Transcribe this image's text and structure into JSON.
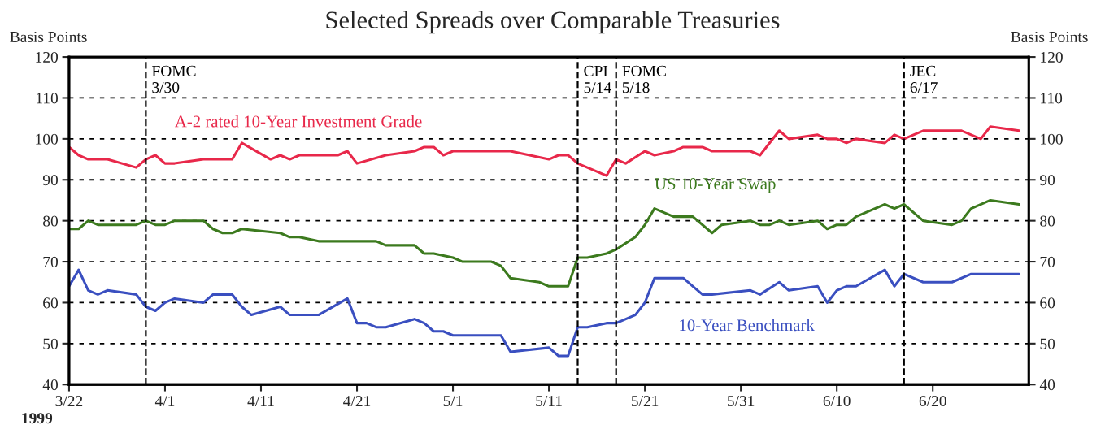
{
  "chart_data": {
    "type": "line",
    "title": "Selected Spreads over Comparable Treasuries",
    "ylabel": "Basis Points",
    "y2label": "Basis Points",
    "annotations": [
      "1999"
    ],
    "series": [
      {
        "name": "A-2 rated 10-Year Investment Grade",
        "color": "#e8284a",
        "x": [
          "1999-03-22",
          "1999-03-23",
          "1999-03-24",
          "1999-03-26",
          "1999-03-29",
          "1999-03-30",
          "1999-03-31",
          "1999-04-01",
          "1999-04-02",
          "1999-04-05",
          "1999-04-08",
          "1999-04-09",
          "1999-04-12",
          "1999-04-13",
          "1999-04-14",
          "1999-04-15",
          "1999-04-19",
          "1999-04-20",
          "1999-04-21",
          "1999-04-24",
          "1999-04-27",
          "1999-04-28",
          "1999-04-29",
          "1999-04-30",
          "1999-05-01",
          "1999-05-07",
          "1999-05-11",
          "1999-05-12",
          "1999-05-13",
          "1999-05-14",
          "1999-05-15",
          "1999-05-17",
          "1999-05-18",
          "1999-05-19",
          "1999-05-21",
          "1999-05-22",
          "1999-05-24",
          "1999-05-25",
          "1999-05-27",
          "1999-05-28",
          "1999-06-01",
          "1999-06-02",
          "1999-06-04",
          "1999-06-05",
          "1999-06-08",
          "1999-06-09",
          "1999-06-10",
          "1999-06-11",
          "1999-06-12",
          "1999-06-15",
          "1999-06-16",
          "1999-06-17",
          "1999-06-19",
          "1999-06-23",
          "1999-06-25",
          "1999-06-26",
          "1999-06-29"
        ],
        "values": [
          98,
          96,
          95,
          95,
          93,
          95,
          96,
          94,
          94,
          95,
          95,
          99,
          95,
          96,
          95,
          96,
          96,
          97,
          94,
          96,
          97,
          98,
          98,
          96,
          97,
          97,
          95,
          96,
          96,
          94,
          93,
          91,
          95,
          94,
          97,
          96,
          97,
          98,
          98,
          97,
          97,
          96,
          102,
          100,
          101,
          100,
          100,
          99,
          100,
          99,
          101,
          100,
          102,
          102,
          100,
          103,
          102
        ]
      },
      {
        "name": "US 10-Year Swap",
        "color": "#3c7a1e",
        "x": [
          "1999-03-22",
          "1999-03-23",
          "1999-03-24",
          "1999-03-25",
          "1999-03-29",
          "1999-03-30",
          "1999-03-31",
          "1999-04-01",
          "1999-04-02",
          "1999-04-05",
          "1999-04-06",
          "1999-04-07",
          "1999-04-08",
          "1999-04-09",
          "1999-04-13",
          "1999-04-14",
          "1999-04-15",
          "1999-04-17",
          "1999-04-23",
          "1999-04-24",
          "1999-04-27",
          "1999-04-28",
          "1999-04-29",
          "1999-05-01",
          "1999-05-02",
          "1999-05-05",
          "1999-05-06",
          "1999-05-07",
          "1999-05-10",
          "1999-05-11",
          "1999-05-13",
          "1999-05-14",
          "1999-05-15",
          "1999-05-17",
          "1999-05-18",
          "1999-05-20",
          "1999-05-21",
          "1999-05-22",
          "1999-05-24",
          "1999-05-26",
          "1999-05-28",
          "1999-05-29",
          "1999-06-01",
          "1999-06-02",
          "1999-06-03",
          "1999-06-04",
          "1999-06-05",
          "1999-06-08",
          "1999-06-09",
          "1999-06-10",
          "1999-06-11",
          "1999-06-12",
          "1999-06-15",
          "1999-06-16",
          "1999-06-17",
          "1999-06-19",
          "1999-06-22",
          "1999-06-23",
          "1999-06-24",
          "1999-06-26",
          "1999-06-29"
        ],
        "values": [
          78,
          78,
          80,
          79,
          79,
          80,
          79,
          79,
          80,
          80,
          78,
          77,
          77,
          78,
          77,
          76,
          76,
          75,
          75,
          74,
          74,
          72,
          72,
          71,
          70,
          70,
          69,
          66,
          65,
          64,
          64,
          71,
          71,
          72,
          73,
          76,
          79,
          83,
          81,
          81,
          77,
          79,
          80,
          79,
          79,
          80,
          79,
          80,
          78,
          79,
          79,
          81,
          84,
          83,
          84,
          80,
          79,
          80,
          83,
          85,
          84
        ]
      },
      {
        "name": "10-Year Benchmark",
        "color": "#3a4fc0",
        "x": [
          "1999-03-22",
          "1999-03-23",
          "1999-03-24",
          "1999-03-25",
          "1999-03-26",
          "1999-03-29",
          "1999-03-30",
          "1999-03-31",
          "1999-04-01",
          "1999-04-02",
          "1999-04-05",
          "1999-04-06",
          "1999-04-08",
          "1999-04-09",
          "1999-04-10",
          "1999-04-13",
          "1999-04-14",
          "1999-04-17",
          "1999-04-20",
          "1999-04-21",
          "1999-04-22",
          "1999-04-23",
          "1999-04-24",
          "1999-04-27",
          "1999-04-28",
          "1999-04-29",
          "1999-04-30",
          "1999-05-01",
          "1999-05-06",
          "1999-05-07",
          "1999-05-11",
          "1999-05-12",
          "1999-05-13",
          "1999-05-14",
          "1999-05-15",
          "1999-05-17",
          "1999-05-18",
          "1999-05-20",
          "1999-05-21",
          "1999-05-22",
          "1999-05-25",
          "1999-05-26",
          "1999-05-27",
          "1999-05-28",
          "1999-06-01",
          "1999-06-02",
          "1999-06-04",
          "1999-06-05",
          "1999-06-08",
          "1999-06-09",
          "1999-06-10",
          "1999-06-11",
          "1999-06-12",
          "1999-06-15",
          "1999-06-16",
          "1999-06-17",
          "1999-06-19",
          "1999-06-22",
          "1999-06-24",
          "1999-06-29"
        ],
        "values": [
          64,
          68,
          63,
          62,
          63,
          62,
          59,
          58,
          60,
          61,
          60,
          62,
          62,
          59,
          57,
          59,
          57,
          57,
          61,
          55,
          55,
          54,
          54,
          56,
          55,
          53,
          53,
          52,
          52,
          48,
          49,
          47,
          47,
          54,
          54,
          55,
          55,
          57,
          60,
          66,
          66,
          64,
          62,
          62,
          63,
          62,
          65,
          63,
          64,
          60,
          63,
          64,
          64,
          68,
          64,
          67,
          65,
          65,
          67,
          67
        ]
      }
    ],
    "xlim": [
      "1999-03-22",
      "1999-06-30"
    ],
    "xticks": [
      {
        "value": "1999-03-22",
        "label": "3/22"
      },
      {
        "value": "1999-04-01",
        "label": "4/1"
      },
      {
        "value": "1999-04-11",
        "label": "4/11"
      },
      {
        "value": "1999-04-21",
        "label": "4/21"
      },
      {
        "value": "1999-05-01",
        "label": "5/1"
      },
      {
        "value": "1999-05-11",
        "label": "5/11"
      },
      {
        "value": "1999-05-21",
        "label": "5/21"
      },
      {
        "value": "1999-05-31",
        "label": "5/31"
      },
      {
        "value": "1999-06-10",
        "label": "6/10"
      },
      {
        "value": "1999-06-20",
        "label": "6/20"
      }
    ],
    "ylim": [
      40,
      120
    ],
    "yticks": [
      40,
      50,
      60,
      70,
      80,
      90,
      100,
      110,
      120
    ],
    "y2lim": [
      40,
      120
    ],
    "y2ticks": [
      40,
      50,
      60,
      70,
      80,
      90,
      100,
      110,
      120
    ],
    "ref_lines": [
      {
        "axis": "x",
        "value": "1999-03-30",
        "label": "FOMC\n3/30",
        "color": "#000000",
        "line_style": "dashed"
      },
      {
        "axis": "x",
        "value": "1999-05-14",
        "label": "CPI\n5/14",
        "color": "#000000",
        "line_style": "dashed"
      },
      {
        "axis": "x",
        "value": "1999-05-18",
        "label": "FOMC\n5/18",
        "color": "#000000",
        "line_style": "dashed"
      },
      {
        "axis": "x",
        "value": "1999-06-17",
        "label": "JEC\n6/17",
        "color": "#000000",
        "line_style": "dashed"
      }
    ],
    "grid": "y"
  }
}
